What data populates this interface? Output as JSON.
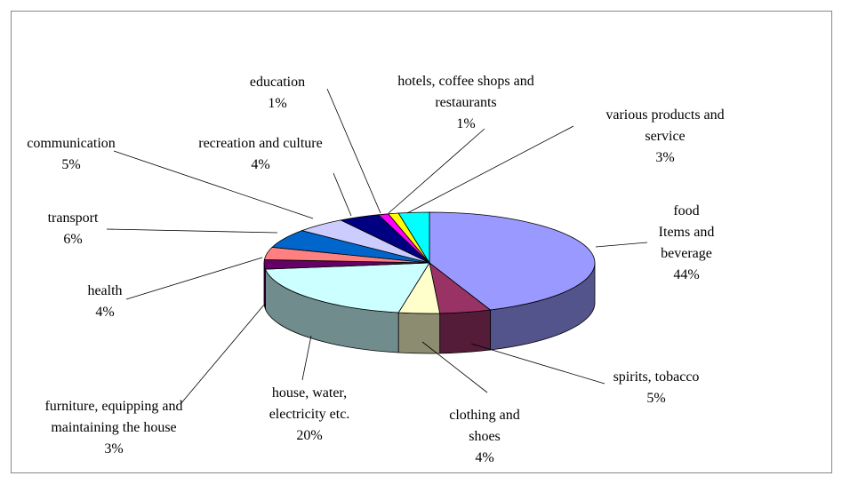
{
  "chart_data": {
    "type": "pie3d",
    "categories": [
      "food\nItems and\nbeverage",
      "spirits, tobacco",
      "clothing and\nshoes",
      "house, water,\nelectricity etc.",
      "furniture, equipping and\nmaintaining the house",
      "health",
      "transport",
      "communication",
      "recreation and culture",
      "education",
      "hotels, coffee shops and\nrestaurants",
      "various products and\nservice"
    ],
    "values": [
      44,
      5,
      4,
      20,
      3,
      4,
      6,
      5,
      4,
      1,
      1,
      3
    ],
    "value_labels": [
      "44%",
      "5%",
      "4%",
      "20%",
      "3%",
      "4%",
      "6%",
      "5%",
      "4%",
      "1%",
      "1%",
      "3%"
    ],
    "colors": [
      "#9999ff",
      "#993366",
      "#ffffcc",
      "#ccffff",
      "#660066",
      "#ff8080",
      "#0066cc",
      "#ccccff",
      "#000080",
      "#ff00ff",
      "#ffff00",
      "#00ffff"
    ]
  }
}
